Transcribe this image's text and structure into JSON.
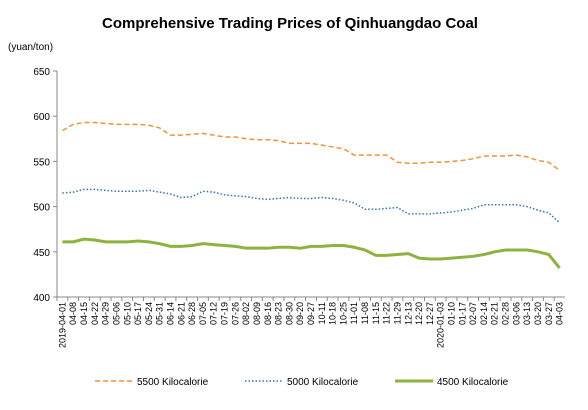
{
  "chart_data": {
    "type": "line",
    "title": "Comprehensive Trading Prices of Qinhuangdao Coal",
    "y_label": "(yuan/ton)",
    "categories": [
      "2019-04-01",
      "04-08",
      "04-15",
      "04-22",
      "04-29",
      "05-06",
      "05-10",
      "05-17",
      "05-24",
      "05-31",
      "06-14",
      "06-21",
      "06-28",
      "07-05",
      "07-12",
      "07-19",
      "07-26",
      "08-02",
      "08-09",
      "08-16",
      "08-23",
      "08-30",
      "09-20",
      "09-27",
      "10-11",
      "10-18",
      "10-25",
      "11-01",
      "11-08",
      "11-15",
      "11-22",
      "11-29",
      "12-13",
      "12-20",
      "12-27",
      "2020-01-03",
      "01-10",
      "01-17",
      "02-07",
      "02-14",
      "02-21",
      "02-28",
      "03-06",
      "03-13",
      "03-20",
      "03-27",
      "04-03"
    ],
    "series": [
      {
        "name": "5500 Kilocalorie",
        "color": "#f0923a",
        "style": "dashed",
        "values": [
          584,
          591,
          593,
          593,
          592,
          591,
          591,
          591,
          590,
          587,
          579,
          579,
          580,
          581,
          579,
          577,
          577,
          575,
          574,
          574,
          573,
          570,
          570,
          570,
          568,
          566,
          564,
          557,
          557,
          557,
          557,
          549,
          548,
          548,
          549,
          549,
          550,
          551,
          553,
          556,
          556,
          556,
          557,
          555,
          551,
          549,
          540
        ]
      },
      {
        "name": "5000 Kilocalorie",
        "color": "#2e75b6",
        "style": "dotted",
        "values": [
          515,
          516,
          519,
          519,
          518,
          517,
          517,
          517,
          518,
          516,
          514,
          510,
          511,
          517,
          516,
          513,
          512,
          511,
          509,
          508,
          509,
          510,
          509,
          509,
          510,
          509,
          507,
          504,
          497,
          497,
          498,
          499,
          492,
          492,
          492,
          493,
          494,
          496,
          498,
          502,
          502,
          502,
          502,
          500,
          496,
          493,
          482
        ]
      },
      {
        "name": "4500 Kilocalorie",
        "color": "#8db33f",
        "style": "solid",
        "values": [
          461,
          461,
          464,
          463,
          461,
          461,
          461,
          462,
          461,
          459,
          456,
          456,
          457,
          459,
          458,
          457,
          456,
          454,
          454,
          454,
          455,
          455,
          454,
          456,
          456,
          457,
          457,
          455,
          452,
          446,
          446,
          447,
          448,
          443,
          442,
          442,
          443,
          444,
          445,
          447,
          450,
          452,
          452,
          452,
          450,
          447,
          432
        ]
      }
    ],
    "ylim": [
      400,
      650
    ],
    "yticks": [
      400,
      450,
      500,
      550,
      600,
      650
    ],
    "legend": "bottom"
  }
}
